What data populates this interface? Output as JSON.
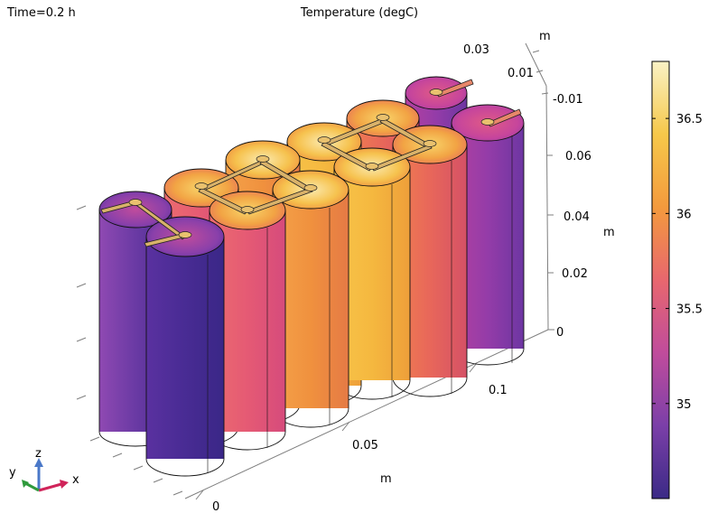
{
  "header": {
    "time_label": "Time=0.2 h",
    "title": "Temperature (degC)"
  },
  "axes": {
    "y_unit": "m",
    "y_ticks": [
      "0.03",
      "0.01",
      "-0.01"
    ],
    "z_unit": "m",
    "z_ticks": [
      "0.06",
      "0.04",
      "0.02",
      "0"
    ],
    "x_unit": "m",
    "x_ticks": [
      "0",
      "0.05",
      "0.1"
    ]
  },
  "colorbar": {
    "min": 34.5,
    "max": 36.8,
    "ticks": [
      "36.5",
      "36",
      "35.5",
      "35"
    ],
    "colormap": "plasma-like",
    "stops": [
      "#3b2a86",
      "#7b3fa8",
      "#c04c9c",
      "#e8676e",
      "#f39a3d",
      "#f6c84a",
      "#faf2c5"
    ]
  },
  "triad": {
    "x": "x",
    "y": "y",
    "z": "z"
  },
  "cells": {
    "back_row_temps": [
      35.2,
      36.3,
      36.7,
      36.6,
      35.7
    ],
    "front_row_temps": [
      34.9,
      35.9,
      36.4,
      36.1,
      35.3
    ]
  },
  "colors": {
    "edge": "#000000",
    "grid": "#7f7f7f",
    "tab": "#d9b26a"
  }
}
